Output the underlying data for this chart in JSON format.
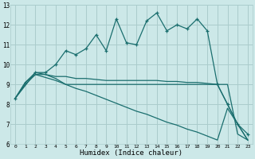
{
  "xlabel": "Humidex (Indice chaleur)",
  "bg_color": "#cce8e8",
  "grid_color": "#aacccc",
  "line_color": "#1a6e6e",
  "xlim": [
    -0.5,
    23.5
  ],
  "ylim": [
    6,
    13
  ],
  "xticks": [
    0,
    1,
    2,
    3,
    4,
    5,
    6,
    7,
    8,
    9,
    10,
    11,
    12,
    13,
    14,
    15,
    16,
    17,
    18,
    19,
    20,
    21,
    22,
    23
  ],
  "yticks": [
    6,
    7,
    8,
    9,
    10,
    11,
    12,
    13
  ],
  "series1_x": [
    0,
    1,
    2,
    3,
    4,
    5,
    6,
    7,
    8,
    9,
    10,
    11,
    12,
    13,
    14,
    15,
    16,
    17,
    18,
    19,
    20,
    21,
    22,
    23
  ],
  "series1_y": [
    8.3,
    9.1,
    9.6,
    9.6,
    10.0,
    10.7,
    10.5,
    10.8,
    11.5,
    10.7,
    12.3,
    11.1,
    11.0,
    12.2,
    12.6,
    11.7,
    12.0,
    11.8,
    12.3,
    11.7,
    9.0,
    8.0,
    7.0,
    6.5
  ],
  "series2_x": [
    0,
    1,
    2,
    3,
    4,
    5,
    6,
    7,
    8,
    9,
    10,
    11,
    12,
    13,
    14,
    15,
    16,
    17,
    18,
    19,
    20,
    21,
    22,
    23
  ],
  "series2_y": [
    8.3,
    9.1,
    9.5,
    9.5,
    9.4,
    9.4,
    9.3,
    9.3,
    9.25,
    9.2,
    9.2,
    9.2,
    9.2,
    9.2,
    9.2,
    9.15,
    9.15,
    9.1,
    9.1,
    9.05,
    9.0,
    9.0,
    6.5,
    6.2
  ],
  "series3_x": [
    0,
    1,
    2,
    3,
    4,
    5,
    6,
    7,
    8,
    9,
    10,
    11,
    12,
    13,
    14,
    15,
    16,
    17,
    18,
    19,
    20,
    21,
    22,
    23
  ],
  "series3_y": [
    8.3,
    9.0,
    9.5,
    9.35,
    9.2,
    9.0,
    8.8,
    8.65,
    8.45,
    8.25,
    8.05,
    7.85,
    7.65,
    7.5,
    7.3,
    7.1,
    6.95,
    6.75,
    6.6,
    6.4,
    6.2,
    7.8,
    7.0,
    6.2
  ],
  "series4_x": [
    0,
    2,
    3,
    4,
    5,
    20,
    21,
    22,
    23
  ],
  "series4_y": [
    8.3,
    9.6,
    9.5,
    9.3,
    9.0,
    9.0,
    8.0,
    7.0,
    6.2
  ]
}
